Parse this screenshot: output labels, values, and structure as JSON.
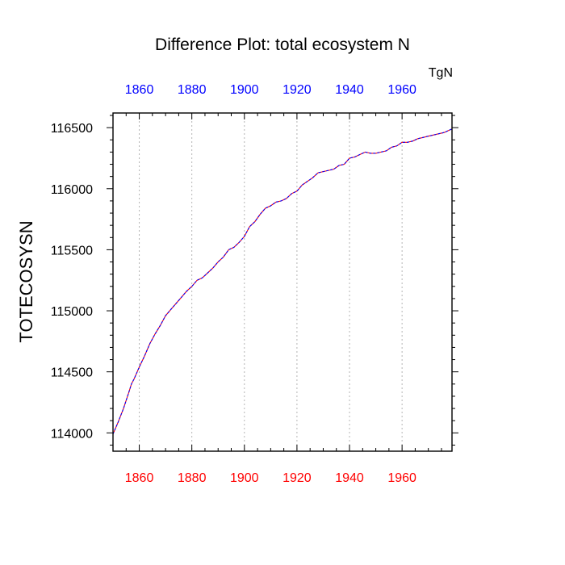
{
  "chart_data": {
    "type": "line",
    "title": "Difference Plot: total ecosystem N",
    "units": "TgN",
    "ylabel": "TOTECOSYSN",
    "xlabel": "",
    "xlim": [
      1850,
      1979
    ],
    "ylim": [
      113850,
      116620
    ],
    "x_ticks": [
      1860,
      1880,
      1900,
      1920,
      1940,
      1960
    ],
    "y_ticks": [
      114000,
      114500,
      115000,
      115500,
      116000,
      116500
    ],
    "grid": "vertical-dotted",
    "colors": {
      "bottom_ticks": "#ff0000",
      "top_ticks": "#0000ff",
      "line_case1": "#ff0000",
      "line_case2": "#0000ff",
      "axes": "#000000",
      "grid": "#b4b4b4"
    },
    "series": [
      {
        "x": [
          1850,
          1852,
          1854,
          1856,
          1857,
          1858,
          1860,
          1862,
          1864,
          1866,
          1868,
          1870,
          1872,
          1874,
          1876,
          1878,
          1880,
          1882,
          1883,
          1884,
          1886,
          1888,
          1890,
          1892,
          1894,
          1896,
          1898,
          1900,
          1902,
          1904,
          1906,
          1908,
          1910,
          1912,
          1914,
          1916,
          1918,
          1920,
          1922,
          1924,
          1926,
          1928,
          1930,
          1932,
          1934,
          1936,
          1938,
          1940,
          1942,
          1944,
          1946,
          1948,
          1950,
          1952,
          1954,
          1956,
          1958,
          1960,
          1962,
          1964,
          1966,
          1968,
          1970,
          1972,
          1974,
          1976,
          1979
        ],
        "y": [
          113990,
          114090,
          114200,
          114330,
          114400,
          114440,
          114540,
          114630,
          114730,
          114810,
          114880,
          114960,
          115010,
          115060,
          115110,
          115160,
          115200,
          115250,
          115260,
          115270,
          115310,
          115350,
          115400,
          115440,
          115500,
          115520,
          115560,
          115610,
          115690,
          115730,
          115790,
          115840,
          115860,
          115890,
          115900,
          115920,
          115960,
          115980,
          116030,
          116060,
          116090,
          116130,
          116140,
          116150,
          116160,
          116190,
          116200,
          116250,
          116260,
          116280,
          116300,
          116290,
          116290,
          116300,
          116310,
          116340,
          116350,
          116380,
          116380,
          116390,
          116410,
          116420,
          116430,
          116440,
          116450,
          116460,
          116490
        ]
      }
    ]
  }
}
